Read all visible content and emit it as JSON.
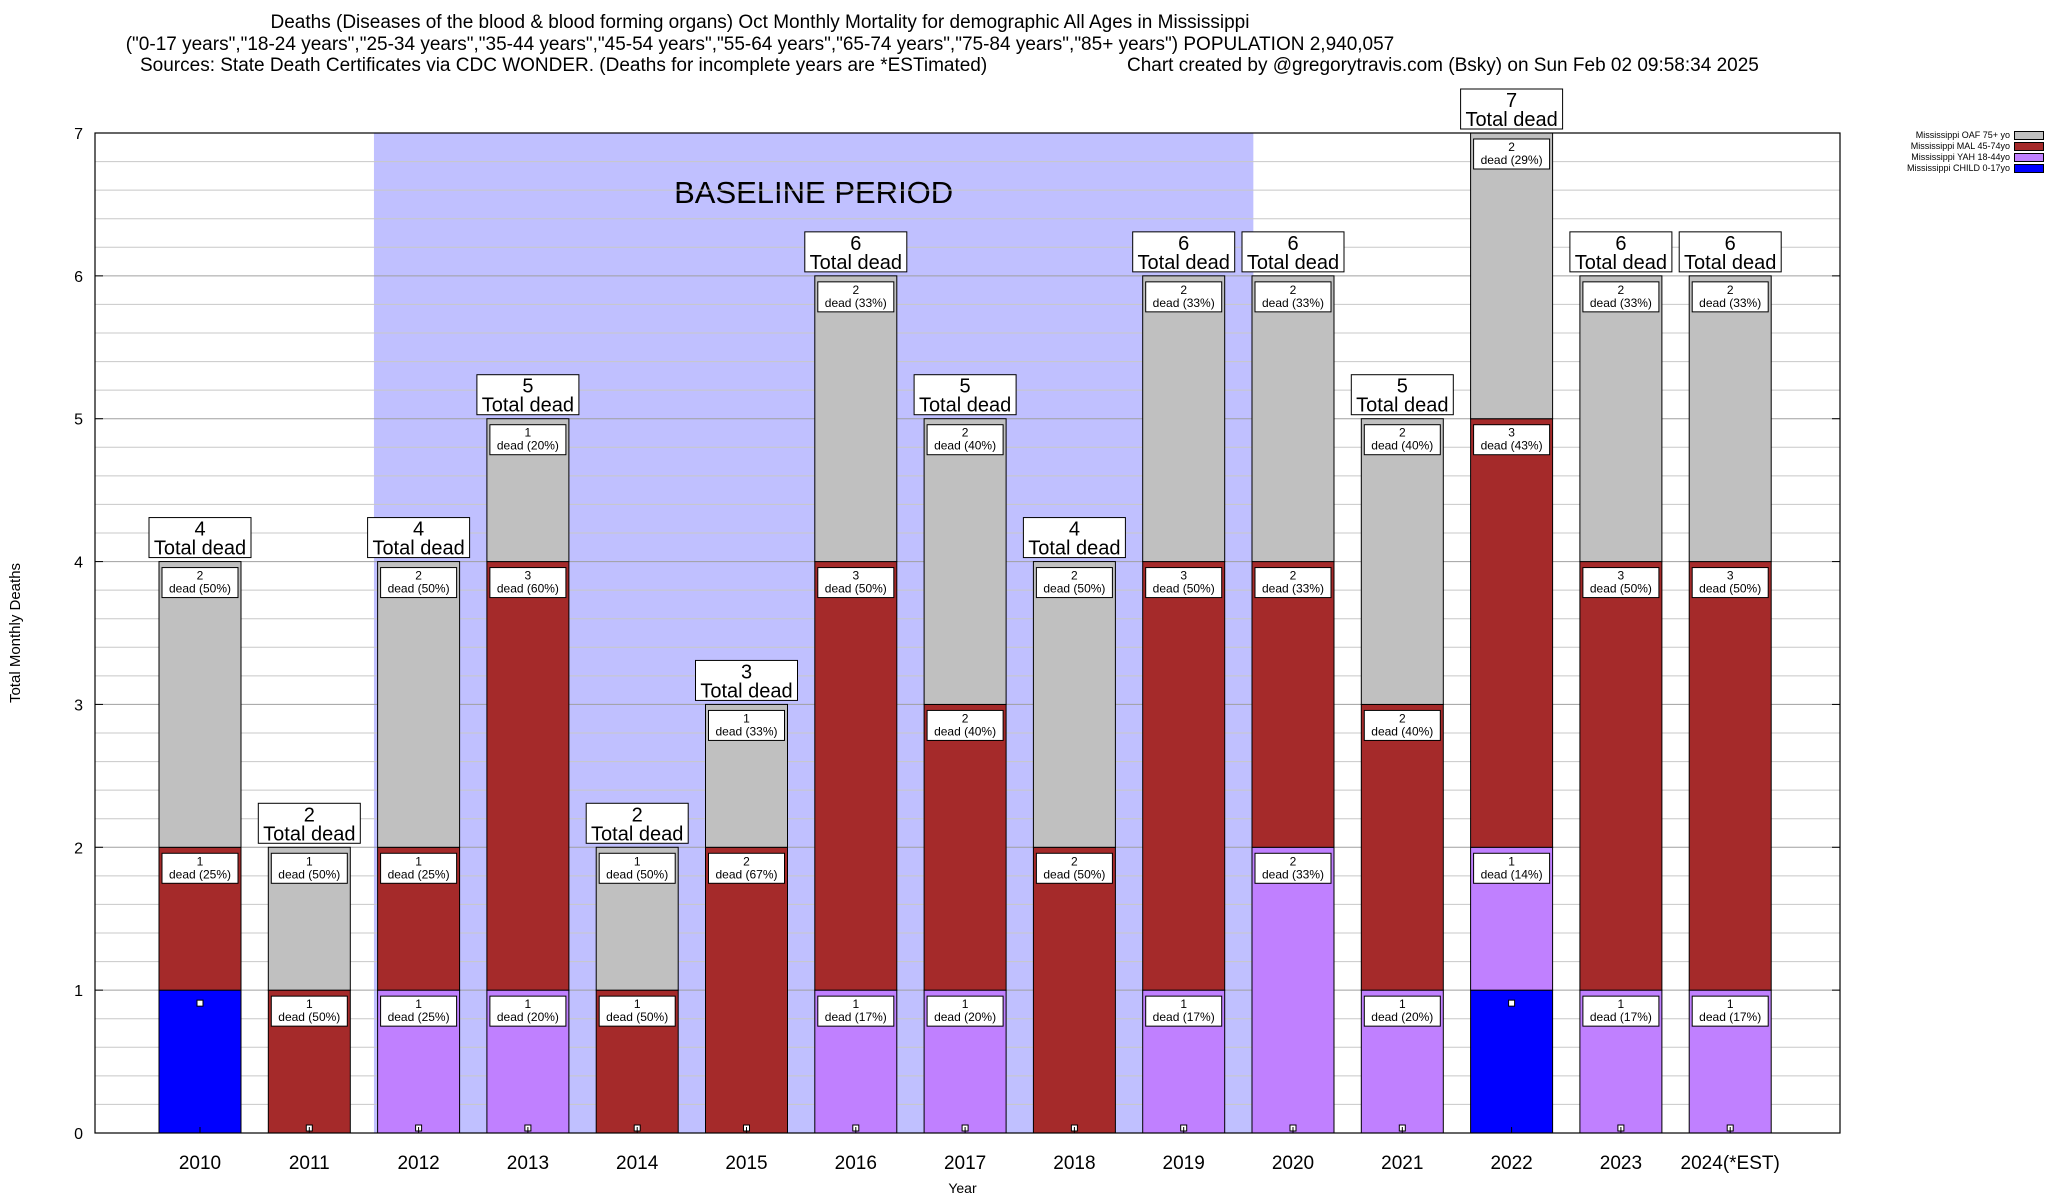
{
  "header": {
    "title": "Deaths (Diseases of the blood & blood forming organs) Oct Monthly Mortality for demographic All Ages in Mississippi",
    "subtitle": "(\"0-17 years\",\"18-24 years\",\"25-34 years\",\"35-44 years\",\"45-54 years\",\"55-64 years\",\"65-74 years\",\"75-84 years\",\"85+ years\") POPULATION 2,940,057",
    "sources": "Sources: State Death Certificates via CDC WONDER. (Deaths for incomplete years are *ESTimated)",
    "credit": "Chart created by @gregorytravis.com (Bsky) on Sun Feb 02 09:58:34 2025"
  },
  "chart_data": {
    "type": "bar",
    "stacked": true,
    "xlabel": "Year",
    "ylabel": "Total Monthly Deaths",
    "ylim": [
      0,
      7
    ],
    "yticks": [
      0,
      1,
      2,
      3,
      4,
      5,
      6,
      7
    ],
    "grid": true,
    "legend_position": "top-right",
    "categories": [
      "2010",
      "2011",
      "2012",
      "2013",
      "2014",
      "2015",
      "2016",
      "2017",
      "2018",
      "2019",
      "2020",
      "2021",
      "2022",
      "2023",
      "2024(*EST)"
    ],
    "series": [
      {
        "name": "Mississippi CHILD 0-17yo",
        "color": "#0000ff",
        "values": [
          1,
          0,
          0,
          0,
          0,
          0,
          0,
          0,
          0,
          0,
          0,
          0,
          1,
          0,
          0
        ]
      },
      {
        "name": "Mississippi YAH 18-44yo",
        "color": "#c080ff",
        "values": [
          0,
          0,
          1,
          1,
          0,
          0,
          1,
          1,
          0,
          1,
          2,
          1,
          1,
          1,
          1
        ]
      },
      {
        "name": "Mississippi MAL 45-74yo",
        "color": "#a52a2a",
        "values": [
          1,
          1,
          1,
          3,
          1,
          2,
          3,
          2,
          2,
          3,
          2,
          2,
          3,
          3,
          3
        ]
      },
      {
        "name": "Mississippi OAF 75+ yo",
        "color": "#c0c0c0",
        "values": [
          2,
          1,
          2,
          1,
          1,
          1,
          2,
          2,
          2,
          2,
          2,
          2,
          2,
          2,
          2
        ]
      }
    ],
    "segment_labels": {
      "yah": [
        "",
        "",
        "1\ndead (25%)",
        "1\ndead (20%)",
        "",
        "",
        "1\ndead (17%)",
        "1\ndead (20%)",
        "",
        "1\ndead (17%)",
        "2\ndead (33%)",
        "1\ndead (20%)",
        "1\ndead (14%)",
        "1\ndead (17%)",
        "1\ndead (17%)"
      ],
      "mal": [
        "1\ndead (25%)",
        "1\ndead (50%)",
        "1\ndead (25%)",
        "3\ndead (60%)",
        "1\ndead (50%)",
        "2\ndead (67%)",
        "3\ndead (50%)",
        "2\ndead (40%)",
        "2\ndead (50%)",
        "3\ndead (50%)",
        "2\ndead (33%)",
        "2\ndead (40%)",
        "3\ndead (43%)",
        "3\ndead (50%)",
        "3\ndead (50%)"
      ],
      "oaf": [
        "2\ndead (50%)",
        "1\ndead (50%)",
        "2\ndead (50%)",
        "1\ndead (20%)",
        "1\ndead (50%)",
        "1\ndead (33%)",
        "2\ndead (33%)",
        "2\ndead (40%)",
        "2\ndead (50%)",
        "2\ndead (33%)",
        "2\ndead (33%)",
        "2\ndead (40%)",
        "2\ndead (29%)",
        "2\ndead (33%)",
        "2\ndead (33%)"
      ]
    },
    "totals": [
      "4\nTotal dead",
      "2\nTotal dead",
      "4\nTotal dead",
      "5\nTotal dead",
      "2\nTotal dead",
      "3\nTotal dead",
      "6\nTotal dead",
      "5\nTotal dead",
      "4\nTotal dead",
      "6\nTotal dead",
      "6\nTotal dead",
      "5\nTotal dead",
      "7\nTotal dead",
      "6\nTotal dead",
      "6\nTotal dead"
    ],
    "baseline": {
      "label": "BASELINE PERIOD",
      "from": "2012",
      "to": "2019",
      "color": "#c0c0ff"
    }
  }
}
